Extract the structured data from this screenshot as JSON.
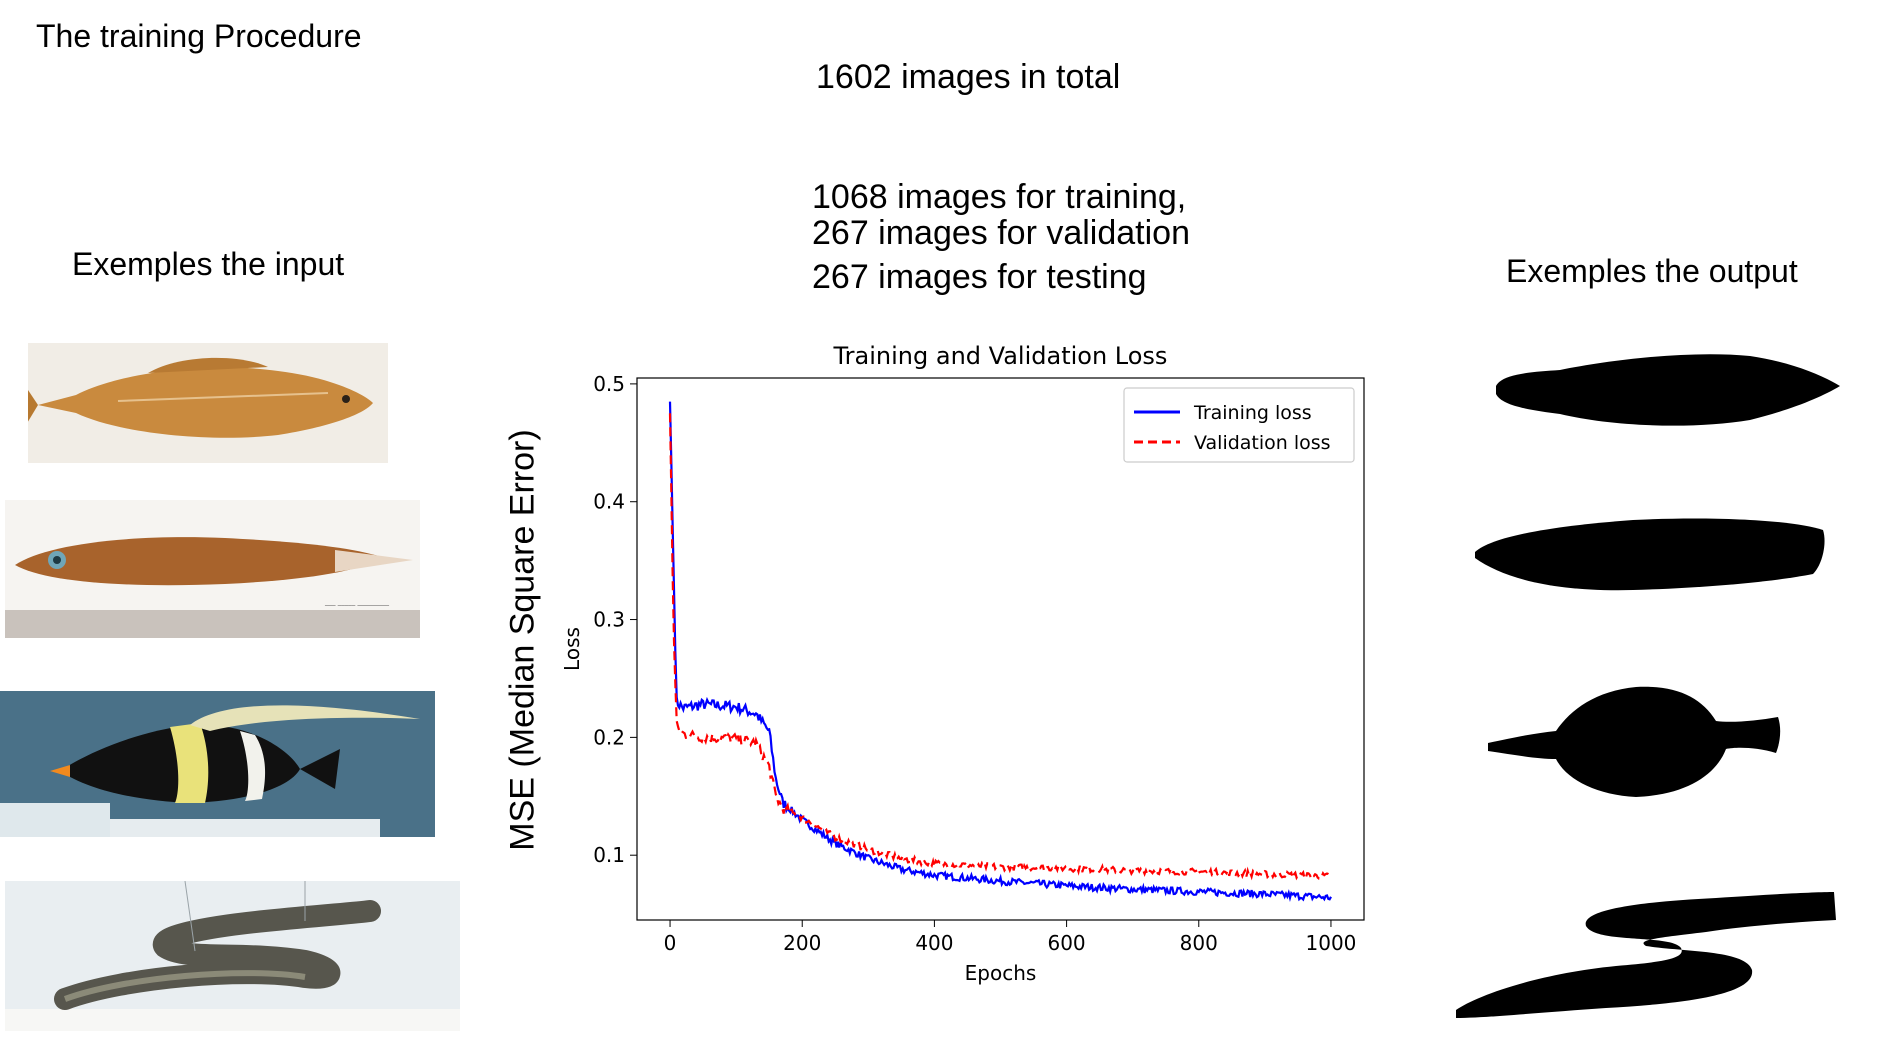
{
  "slide": {
    "title": "The training Procedure",
    "total": "1602 images in total",
    "split": {
      "training": "1068 images for training,",
      "validation": "267 images for validation",
      "testing": "267 images for testing"
    },
    "input_heading": "Exemples the input",
    "output_heading": "Exemples the output",
    "outer_ylabel": "MSE (Median Square Error)"
  },
  "colors": {
    "training": "#0000ff",
    "validation": "#ff0000"
  },
  "chart_data": {
    "type": "line",
    "title": "Training and Validation Loss",
    "xlabel": "Epochs",
    "ylabel": "Loss",
    "xlim": [
      -50,
      1050
    ],
    "ylim": [
      0.045,
      0.505
    ],
    "xticks": [
      0,
      200,
      400,
      600,
      800,
      1000
    ],
    "yticks": [
      0.1,
      0.2,
      0.3,
      0.4,
      0.5
    ],
    "grid": false,
    "legend_position": "top-right",
    "series": [
      {
        "name": "Training loss",
        "color": "#0000ff",
        "style": "solid",
        "x": [
          0,
          5,
          10,
          20,
          50,
          100,
          130,
          150,
          160,
          170,
          200,
          250,
          300,
          350,
          400,
          500,
          600,
          700,
          800,
          900,
          1000
        ],
        "y": [
          0.485,
          0.35,
          0.23,
          0.225,
          0.228,
          0.226,
          0.22,
          0.205,
          0.165,
          0.145,
          0.13,
          0.11,
          0.097,
          0.088,
          0.083,
          0.078,
          0.074,
          0.071,
          0.069,
          0.067,
          0.064
        ]
      },
      {
        "name": "Validation loss",
        "color": "#ff0000",
        "style": "dashed",
        "x": [
          0,
          5,
          10,
          20,
          50,
          100,
          130,
          150,
          160,
          170,
          200,
          250,
          300,
          350,
          400,
          500,
          600,
          700,
          800,
          900,
          1000
        ],
        "y": [
          0.475,
          0.3,
          0.21,
          0.203,
          0.2,
          0.199,
          0.195,
          0.175,
          0.15,
          0.14,
          0.132,
          0.115,
          0.105,
          0.097,
          0.093,
          0.09,
          0.089,
          0.087,
          0.086,
          0.084,
          0.082
        ]
      }
    ]
  }
}
